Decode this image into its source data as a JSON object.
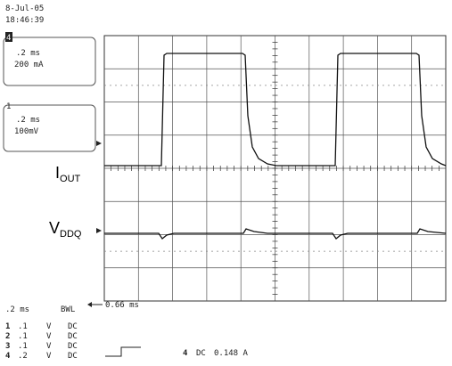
{
  "header": {
    "date": "8-Jul-05",
    "time": "18:46:39"
  },
  "channel_boxes": [
    {
      "channel": "4",
      "timebase": ".2 ms",
      "scale": "200 mA"
    },
    {
      "channel": "1",
      "timebase": ".2 ms",
      "scale": "100mV"
    }
  ],
  "trace_labels": [
    {
      "main": "I",
      "sub": "OUT"
    },
    {
      "main": "V",
      "sub": "DDQ"
    }
  ],
  "footer": {
    "timebase": ".2 ms",
    "bandwidth": "BWL",
    "delay": "0.66 ms",
    "channels": [
      [
        "1",
        ".1",
        "V",
        "DC"
      ],
      [
        "2",
        ".1",
        "V",
        "DC"
      ],
      [
        "3",
        ".1",
        "V",
        "DC"
      ],
      [
        "4",
        ".2",
        "V",
        "DC"
      ]
    ],
    "trigger": {
      "channel": "4",
      "coupling": "DC",
      "level": "0.148 A"
    }
  }
}
